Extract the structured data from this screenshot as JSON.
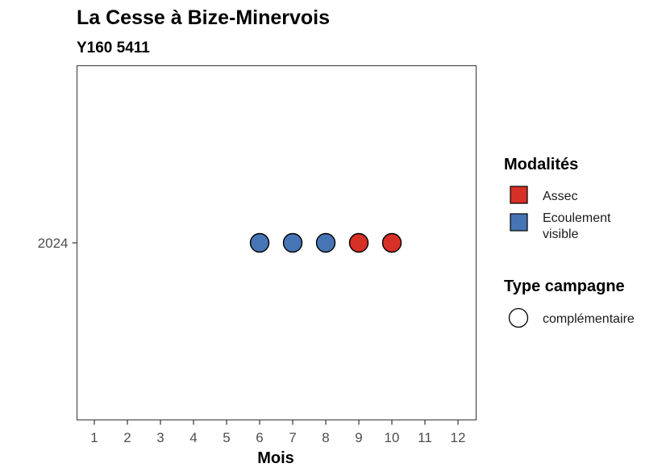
{
  "chart_data": {
    "type": "scatter",
    "title": "La Cesse à Bize-Minervois",
    "subtitle": "Y160 5411",
    "xlabel": "Mois",
    "ylabel": "",
    "x_ticks": [
      1,
      2,
      3,
      4,
      5,
      6,
      7,
      8,
      9,
      10,
      11,
      12
    ],
    "y_categories": [
      "2024"
    ],
    "xlim": [
      0.5,
      12.5
    ],
    "grid": false,
    "points": [
      {
        "x": 6,
        "y": "2024",
        "modalite": "Ecoulement visible",
        "campagne": "complémentaire"
      },
      {
        "x": 7,
        "y": "2024",
        "modalite": "Ecoulement visible",
        "campagne": "complémentaire"
      },
      {
        "x": 8,
        "y": "2024",
        "modalite": "Ecoulement visible",
        "campagne": "complémentaire"
      },
      {
        "x": 9,
        "y": "2024",
        "modalite": "Assec",
        "campagne": "complémentaire"
      },
      {
        "x": 10,
        "y": "2024",
        "modalite": "Assec",
        "campagne": "complémentaire"
      }
    ],
    "legend_position": "right",
    "legend": {
      "modalites": {
        "title": "Modalités",
        "items": [
          {
            "label": "Assec",
            "color": "#d73027"
          },
          {
            "label": "Ecoulement visible",
            "lines": [
              "Ecoulement",
              "visible"
            ],
            "color": "#4575b4"
          }
        ]
      },
      "campagne": {
        "title": "Type campagne",
        "items": [
          {
            "label": "complémentaire",
            "shape": "circle"
          }
        ]
      }
    }
  }
}
